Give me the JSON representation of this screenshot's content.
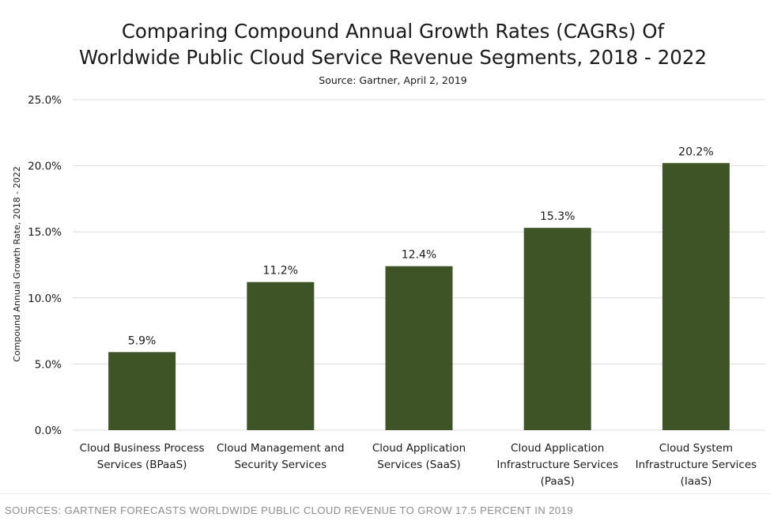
{
  "colors": {
    "bar": "#3e5426",
    "grid": "#d9d9d9",
    "text": "#1a1a1a",
    "footer_text": "#8c8c8c"
  },
  "footer": {
    "caption": "SOURCES: GARTNER FORECASTS WORLDWIDE PUBLIC CLOUD REVENUE TO GROW 17.5 PERCENT IN 2019"
  },
  "chart_data": {
    "type": "bar",
    "title_lines": [
      "Comparing Compound Annual Growth Rates (CAGRs) Of",
      "Worldwide Public Cloud Service Revenue Segments, 2018 - 2022"
    ],
    "subtitle": "Source: Gartner, April 2, 2019",
    "ylabel": "Compound Annual Growth Rate, 2018 - 2022",
    "xlabel": "",
    "ylim": [
      0,
      25
    ],
    "yticks": [
      0,
      5,
      10,
      15,
      20,
      25
    ],
    "ytick_labels": [
      "0.0%",
      "5.0%",
      "10.0%",
      "15.0%",
      "20.0%",
      "25.0%"
    ],
    "grid": true,
    "legend": "none",
    "categories": [
      [
        "Cloud Business Process",
        "Services (BPaaS)"
      ],
      [
        "Cloud Management and",
        "Security Services"
      ],
      [
        "Cloud Application",
        "Services (SaaS)"
      ],
      [
        "Cloud Application",
        "Infrastructure Services",
        "(PaaS)"
      ],
      [
        "Cloud System",
        "Infrastructure Services",
        "(IaaS)"
      ]
    ],
    "values": [
      5.9,
      11.2,
      12.4,
      15.3,
      20.2
    ],
    "data_labels": [
      "5.9%",
      "11.2%",
      "12.4%",
      "15.3%",
      "20.2%"
    ]
  }
}
